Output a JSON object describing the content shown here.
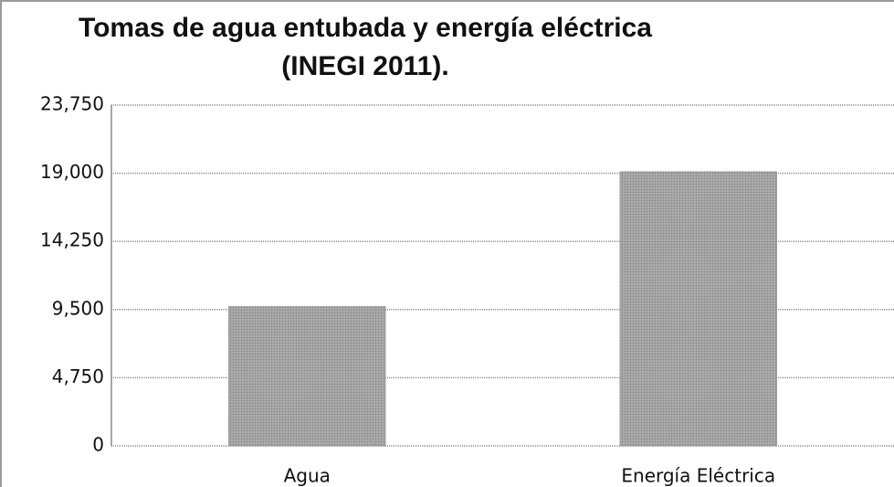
{
  "chart_data": {
    "type": "bar",
    "title": "Tomas de agua entubada y energía eléctrica",
    "subtitle": "(INEGI 2011).",
    "categories": [
      "Agua",
      "Energía Eléctrica"
    ],
    "values": [
      9700,
      19100
    ],
    "color": "#9a9a9a",
    "ylim": [
      0,
      23750
    ],
    "yticks": [
      0,
      {
        "value": 4750,
        "label": "4,750"
      },
      {
        "value": 9500,
        "label": "9,500"
      },
      {
        "value": 14250,
        "label": "14,250"
      },
      {
        "value": 19000,
        "label": "19,000"
      },
      {
        "value": 23750,
        "label": "23,750"
      }
    ],
    "grid": true
  }
}
